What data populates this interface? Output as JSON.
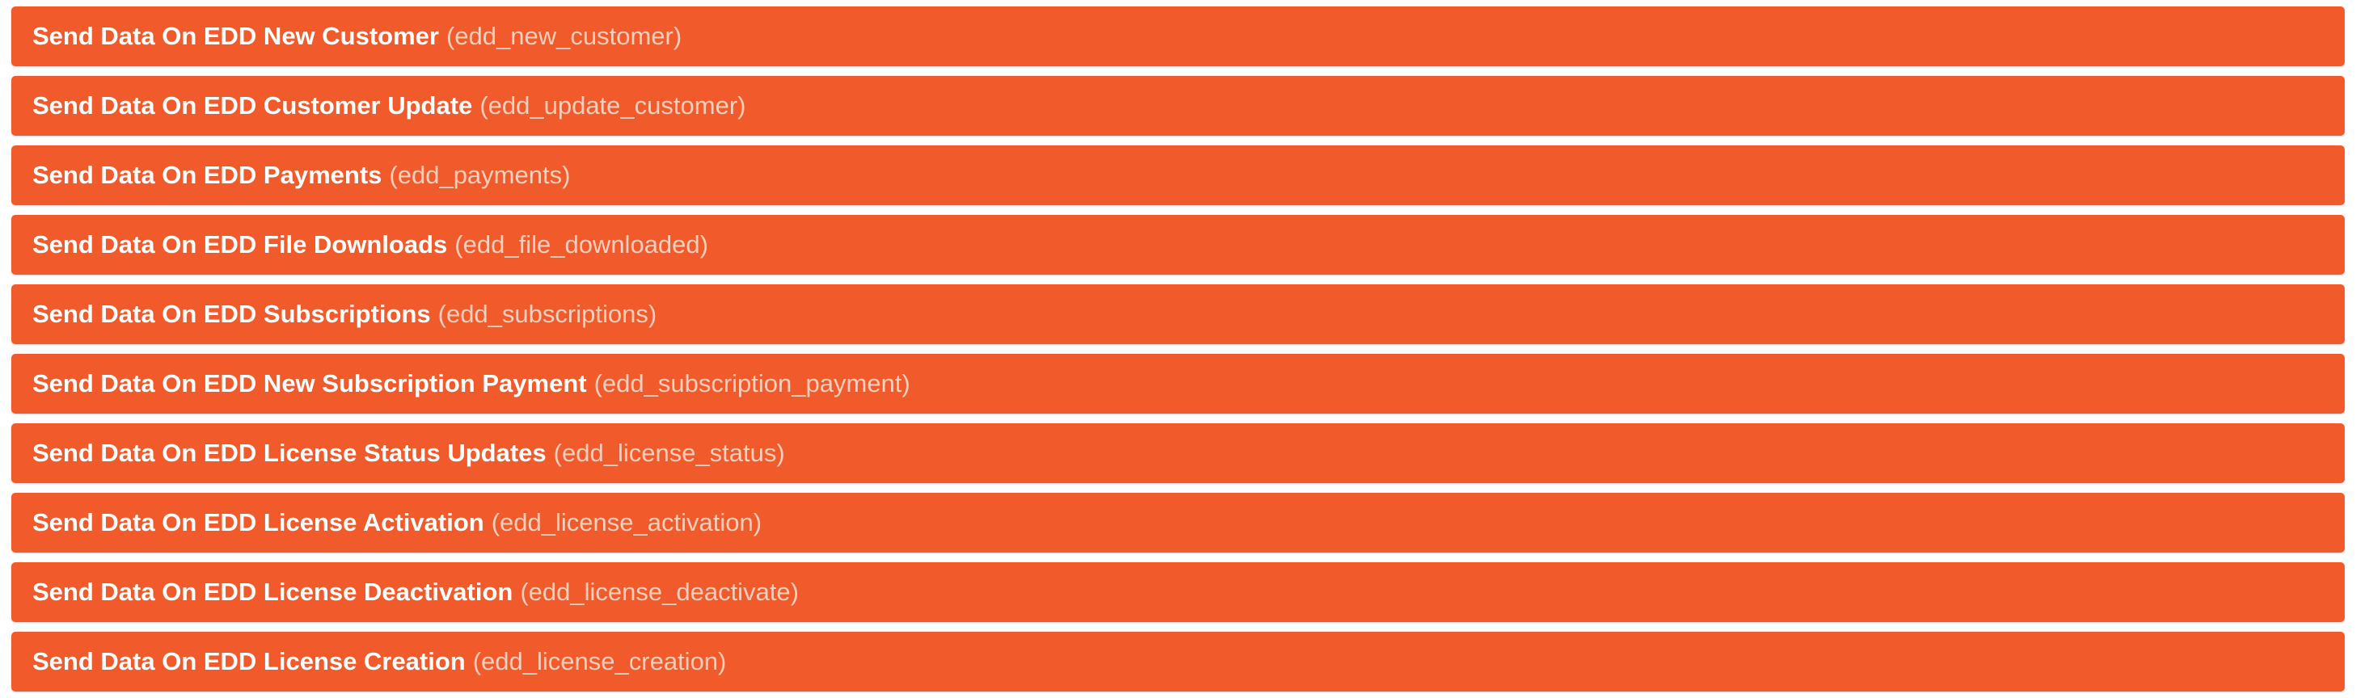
{
  "colors": {
    "row_background": "#f15a2b",
    "title_text": "#ffffff",
    "slug_text": "#ffd9cb"
  },
  "triggers": [
    {
      "title": "Send Data On EDD New Customer",
      "slug": "(edd_new_customer)"
    },
    {
      "title": "Send Data On EDD Customer Update",
      "slug": "(edd_update_customer)"
    },
    {
      "title": "Send Data On EDD Payments",
      "slug": "(edd_payments)"
    },
    {
      "title": "Send Data On EDD File Downloads",
      "slug": "(edd_file_downloaded)"
    },
    {
      "title": "Send Data On EDD Subscriptions",
      "slug": "(edd_subscriptions)"
    },
    {
      "title": "Send Data On EDD New Subscription Payment",
      "slug": "(edd_subscription_payment)"
    },
    {
      "title": "Send Data On EDD License Status Updates",
      "slug": "(edd_license_status)"
    },
    {
      "title": "Send Data On EDD License Activation",
      "slug": "(edd_license_activation)"
    },
    {
      "title": "Send Data On EDD License Deactivation",
      "slug": "(edd_license_deactivate)"
    },
    {
      "title": "Send Data On EDD License Creation",
      "slug": "(edd_license_creation)"
    }
  ]
}
